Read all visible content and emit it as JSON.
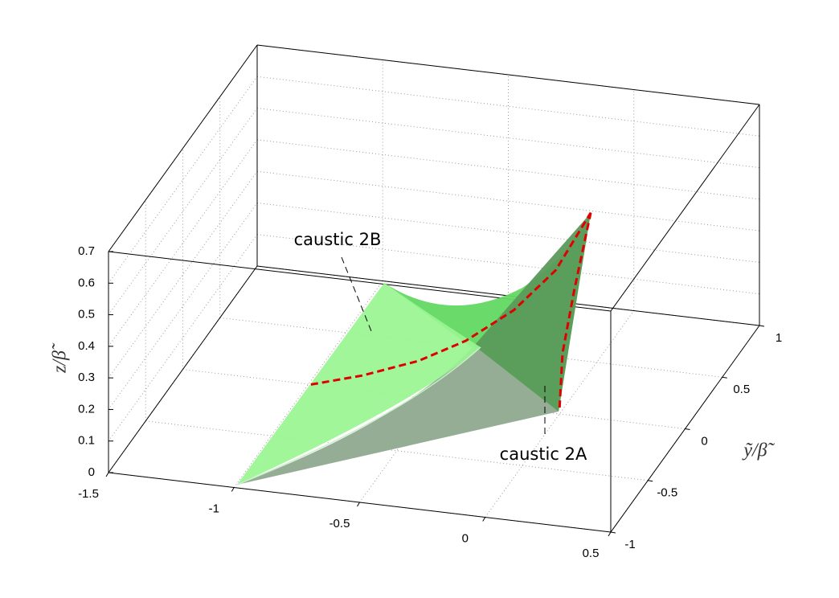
{
  "chart_data": {
    "type": "surface3d",
    "xlim": [
      -1.5,
      0.5
    ],
    "ylim": [
      -1,
      1
    ],
    "zlim": [
      0,
      0.7
    ],
    "xticks": [
      -1.5,
      -1,
      -0.5,
      0,
      0.5
    ],
    "yticks": [
      -1,
      -0.5,
      0,
      0.5,
      1
    ],
    "zticks": [
      0,
      0.1,
      0.2,
      0.3,
      0.4,
      0.5,
      0.6,
      0.7
    ],
    "ylabel": "ỹ/β̃",
    "zlabel": "z/β̃",
    "grid": true,
    "series": [
      {
        "name": "caustic 2B",
        "color": "#e00000",
        "x": [
          -0.99,
          -0.8,
          -0.59,
          -0.42,
          -0.25,
          -0.11,
          0
        ],
        "y": [
          0,
          0.05,
          0.1,
          0.16,
          0.23,
          0.32,
          0.42
        ],
        "z": [
          0,
          0.03,
          0.08,
          0.14,
          0.23,
          0.34,
          0.5
        ]
      },
      {
        "name": "caustic 2A",
        "color": "#e00000",
        "x": [
          0,
          0,
          0,
          0
        ],
        "y": [
          0,
          0.04,
          0.2,
          0.42
        ],
        "z": [
          0.02,
          0.18,
          0.33,
          0.5
        ]
      }
    ]
  }
}
